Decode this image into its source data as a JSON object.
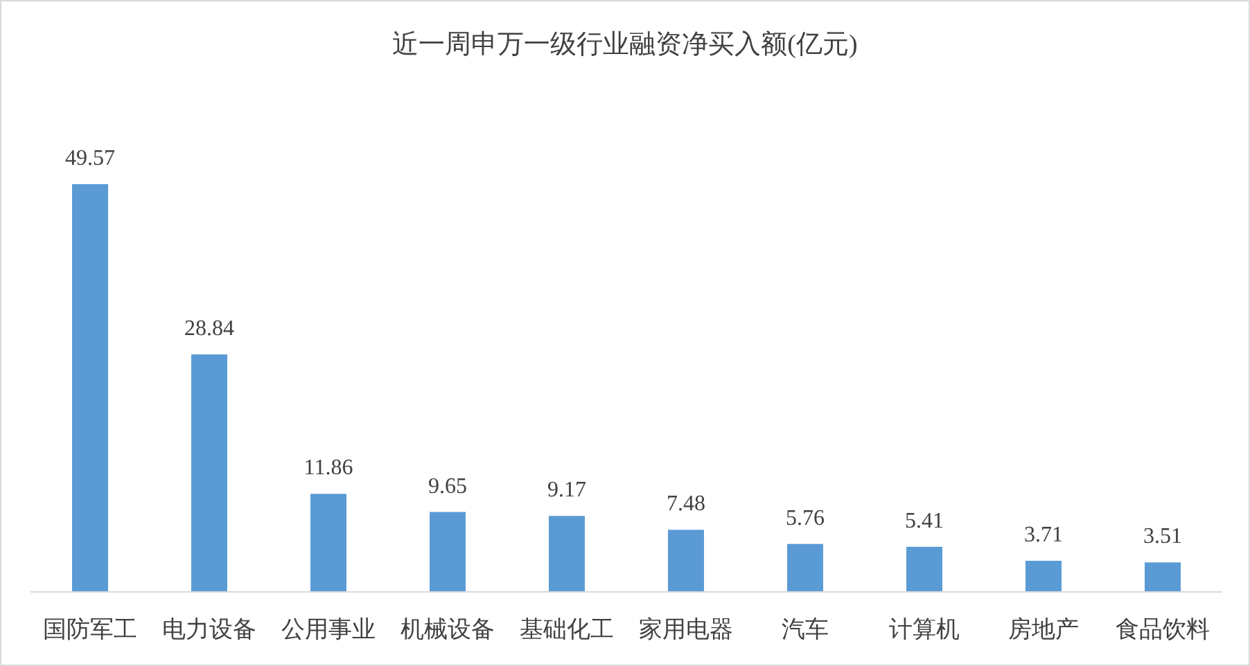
{
  "chart_data": {
    "type": "bar",
    "title": "近一周申万一级行业融资净买入额(亿元)",
    "categories": [
      "国防军工",
      "电力设备",
      "公用事业",
      "机械设备",
      "基础化工",
      "家用电器",
      "汽车",
      "计算机",
      "房地产",
      "食品饮料"
    ],
    "values": [
      49.57,
      28.84,
      11.86,
      9.65,
      9.17,
      7.48,
      5.76,
      5.41,
      3.71,
      3.51
    ],
    "color": "#5b9bd5",
    "data_labels": true
  }
}
